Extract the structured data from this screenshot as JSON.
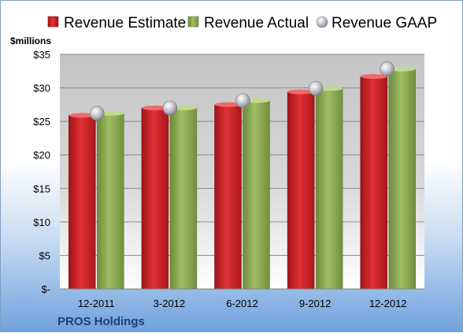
{
  "company": "PROS Holdings",
  "chart_data": {
    "type": "bar",
    "unit_label": "$millions",
    "categories": [
      "12-2011",
      "3-2012",
      "6-2012",
      "9-2012",
      "12-2012"
    ],
    "series": [
      {
        "name": "Revenue Estimate",
        "kind": "bar",
        "color": "#d9252a",
        "values": [
          25.9,
          27.0,
          27.5,
          29.4,
          31.7
        ]
      },
      {
        "name": "Revenue Actual",
        "kind": "bar",
        "color": "#8fae54",
        "values": [
          26.2,
          27.0,
          28.1,
          29.9,
          32.8
        ]
      },
      {
        "name": "Revenue GAAP",
        "kind": "marker",
        "color": "#b8b8c0",
        "values": [
          26.2,
          27.0,
          28.1,
          29.9,
          32.8
        ]
      }
    ],
    "ylim": [
      0,
      35
    ],
    "yticks": [
      0,
      5,
      10,
      15,
      20,
      25,
      30,
      35
    ],
    "ytick_labels": [
      "$-",
      "$5",
      "$10",
      "$15",
      "$20",
      "$25",
      "$30",
      "$35"
    ],
    "grid": true,
    "legend_position": "top"
  }
}
